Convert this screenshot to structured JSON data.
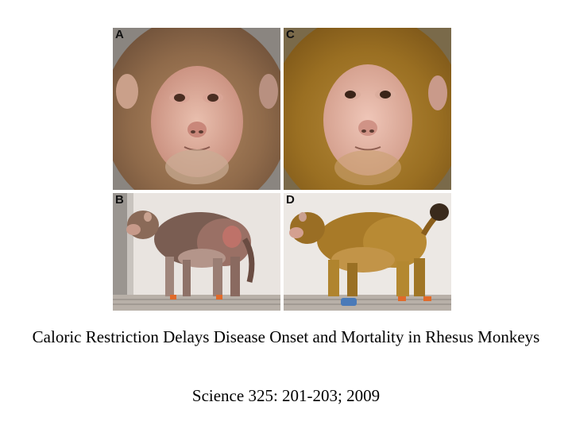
{
  "figure": {
    "panels": [
      {
        "letter": "A",
        "subject": "monkey-face-control"
      },
      {
        "letter": "C",
        "subject": "monkey-face-restricted"
      },
      {
        "letter": "B",
        "subject": "monkey-body-control"
      },
      {
        "letter": "D",
        "subject": "monkey-body-restricted"
      }
    ]
  },
  "caption": {
    "title": "Caloric Restriction Delays Disease Onset and Mortality in Rhesus Monkeys",
    "citation": "Science 325: 201-203; 2009"
  }
}
